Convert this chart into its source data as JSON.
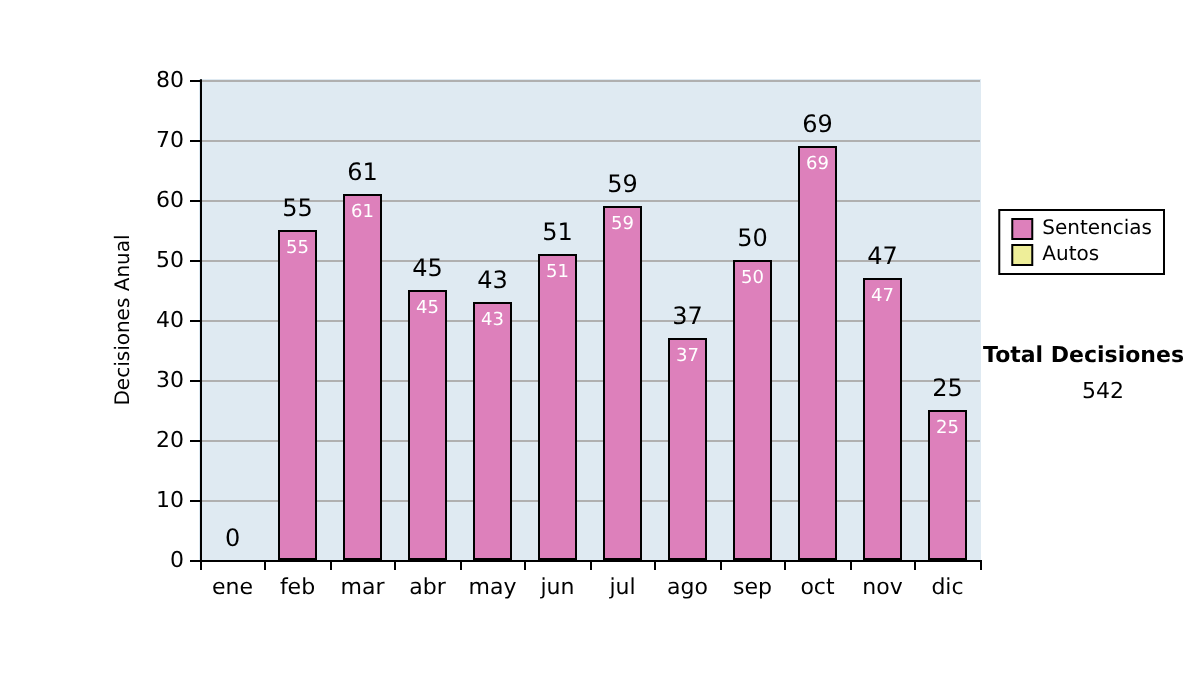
{
  "chart_data": {
    "type": "bar",
    "ylabel": "Decisiones Anual",
    "categories": [
      "ene",
      "feb",
      "mar",
      "abr",
      "may",
      "jun",
      "jul",
      "ago",
      "sep",
      "oct",
      "nov",
      "dic"
    ],
    "series": [
      {
        "name": "Sentencias",
        "color": "#dd80bb",
        "values": [
          0,
          55,
          61,
          45,
          43,
          51,
          59,
          37,
          50,
          69,
          47,
          25
        ],
        "value_labels": [
          null,
          "55",
          "61",
          "45",
          "43",
          "51",
          "59",
          "37",
          "50",
          "69",
          "47",
          "25"
        ]
      },
      {
        "name": "Autos",
        "color": "#eeee99",
        "values": [
          0,
          0,
          0,
          0,
          0,
          0,
          0,
          0,
          0,
          0,
          0,
          0
        ]
      }
    ],
    "stacked": true,
    "totals": [
      "0",
      "55",
      "61",
      "45",
      "43",
      "51",
      "59",
      "37",
      "50",
      "69",
      "47",
      "25"
    ],
    "ylim": [
      0,
      80
    ],
    "yticks": [
      0,
      10,
      20,
      30,
      40,
      50,
      60,
      70,
      80
    ],
    "grid": "y",
    "legend": "right",
    "annotations": [
      "Total Decisiones",
      "542"
    ]
  }
}
